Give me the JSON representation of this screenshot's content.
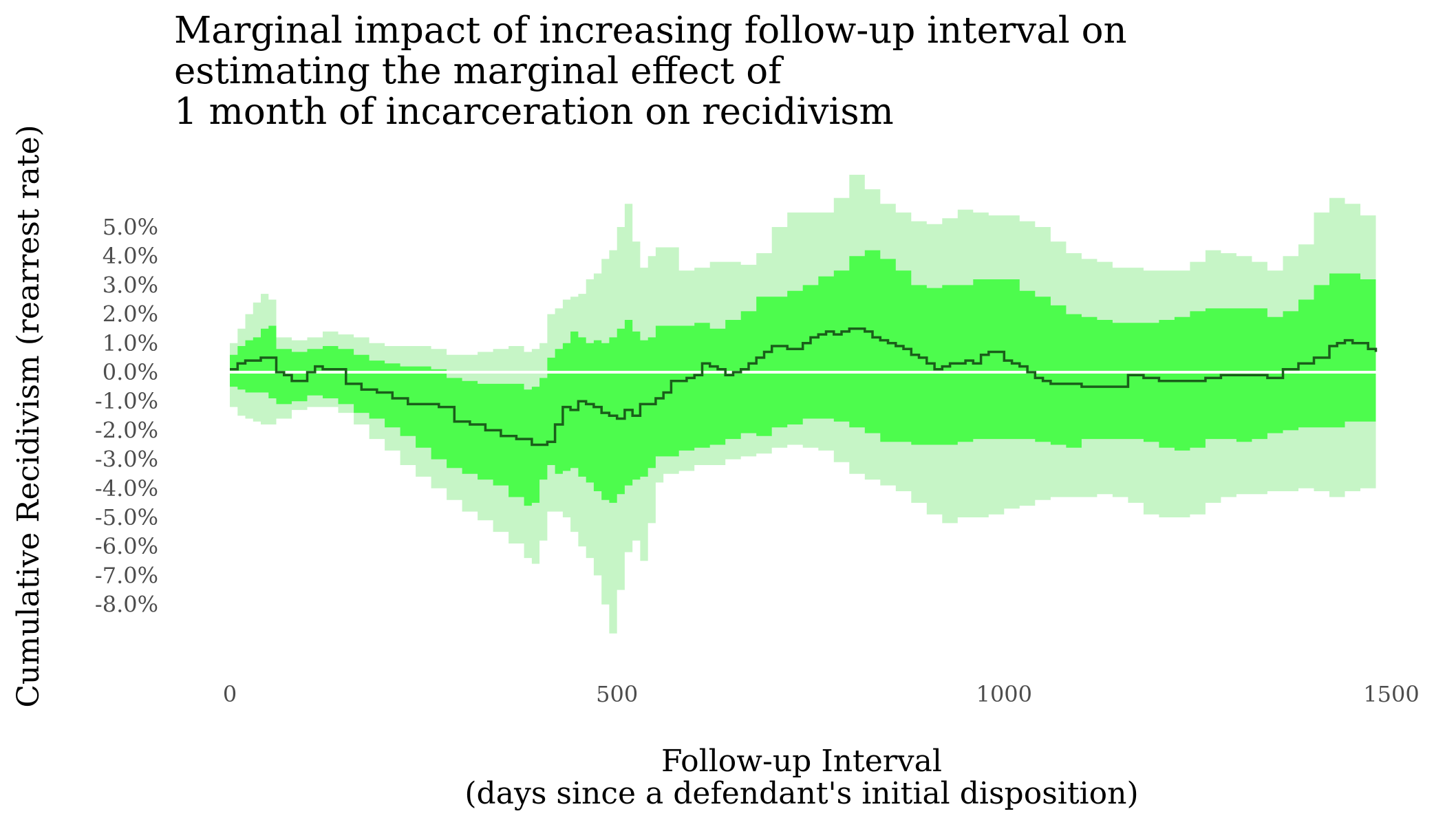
{
  "chart_data": {
    "type": "line",
    "title_lines": [
      "Marginal impact of increasing follow-up interval on",
      "estimating the marginal effect of",
      "1 month of incarceration on recidivism"
    ],
    "xlabel_lines": [
      "Follow-up Interval",
      "(days since a defendant's initial disposition)"
    ],
    "ylabel": "Cumulative Recidivism (rearrest rate)",
    "xlim": [
      0,
      1500
    ],
    "ylim": [
      -8.0,
      5.0
    ],
    "x_ticks": [
      0,
      500,
      1000,
      1500
    ],
    "y_ticks": [
      "5.0%",
      "4.0%",
      "3.0%",
      "2.0%",
      "1.0%",
      "0.0%",
      "-1.0%",
      "-2.0%",
      "-3.0%",
      "-4.0%",
      "-5.0%",
      "-6.0%",
      "-7.0%",
      "-8.0%"
    ],
    "y_tick_values": [
      5.0,
      4.0,
      3.0,
      2.0,
      1.0,
      0.0,
      -1.0,
      -2.0,
      -3.0,
      -4.0,
      -5.0,
      -6.0,
      -7.0,
      -8.0
    ],
    "grid": false,
    "reference_line": 0.0,
    "colors": {
      "estimate_line": "#1a5e1a",
      "inner_band": "#4dfc4d",
      "outer_band": "#c6f5c6",
      "reference_line": "#ffffff"
    },
    "series": [
      {
        "role": "estimate",
        "x": [
          0,
          10,
          20,
          30,
          40,
          50,
          60,
          70,
          80,
          90,
          100,
          110,
          120,
          130,
          150,
          170,
          190,
          210,
          230,
          250,
          270,
          290,
          310,
          330,
          350,
          370,
          390,
          400,
          410,
          420,
          430,
          440,
          450,
          460,
          470,
          480,
          490,
          500,
          510,
          520,
          530,
          540,
          550,
          560,
          570,
          580,
          590,
          600,
          610,
          620,
          630,
          640,
          650,
          660,
          670,
          680,
          690,
          700,
          710,
          720,
          730,
          740,
          750,
          760,
          770,
          780,
          790,
          800,
          810,
          820,
          830,
          840,
          850,
          860,
          870,
          880,
          890,
          900,
          910,
          920,
          930,
          940,
          950,
          960,
          970,
          980,
          990,
          1000,
          1010,
          1020,
          1030,
          1040,
          1050,
          1060,
          1080,
          1100,
          1120,
          1140,
          1160,
          1180,
          1200,
          1220,
          1240,
          1260,
          1280,
          1300,
          1320,
          1340,
          1360,
          1380,
          1400,
          1410,
          1420,
          1430,
          1440,
          1450,
          1460,
          1470,
          1480
        ],
        "y": [
          0.1,
          0.3,
          0.4,
          0.4,
          0.5,
          0.5,
          0.0,
          -0.1,
          -0.3,
          -0.3,
          0.0,
          0.2,
          0.1,
          0.1,
          -0.4,
          -0.6,
          -0.7,
          -0.9,
          -1.1,
          -1.1,
          -1.2,
          -1.7,
          -1.8,
          -2.0,
          -2.2,
          -2.3,
          -2.5,
          -2.5,
          -2.4,
          -1.8,
          -1.2,
          -1.3,
          -1.0,
          -1.1,
          -1.2,
          -1.4,
          -1.5,
          -1.6,
          -1.3,
          -1.5,
          -1.1,
          -1.1,
          -0.9,
          -0.7,
          -0.3,
          -0.3,
          -0.2,
          -0.1,
          0.3,
          0.2,
          0.1,
          -0.1,
          0.0,
          0.1,
          0.3,
          0.5,
          0.7,
          0.9,
          0.9,
          0.8,
          0.8,
          1.0,
          1.2,
          1.3,
          1.4,
          1.3,
          1.4,
          1.5,
          1.5,
          1.4,
          1.2,
          1.1,
          1.0,
          0.9,
          0.8,
          0.6,
          0.5,
          0.3,
          0.1,
          0.2,
          0.3,
          0.3,
          0.4,
          0.3,
          0.6,
          0.7,
          0.7,
          0.4,
          0.3,
          0.2,
          0.0,
          -0.2,
          -0.3,
          -0.4,
          -0.4,
          -0.5,
          -0.5,
          -0.5,
          -0.1,
          -0.2,
          -0.3,
          -0.3,
          -0.3,
          -0.2,
          -0.1,
          -0.1,
          -0.1,
          -0.2,
          0.1,
          0.3,
          0.5,
          0.5,
          0.9,
          1.0,
          1.1,
          1.0,
          1.0,
          0.8,
          0.7
        ]
      },
      {
        "role": "inner-band",
        "x": [
          0,
          10,
          20,
          30,
          40,
          50,
          60,
          80,
          100,
          120,
          140,
          160,
          180,
          200,
          220,
          240,
          260,
          280,
          300,
          320,
          340,
          360,
          380,
          390,
          400,
          410,
          420,
          430,
          440,
          450,
          460,
          470,
          480,
          490,
          500,
          510,
          520,
          530,
          540,
          550,
          560,
          580,
          600,
          620,
          640,
          660,
          680,
          700,
          720,
          740,
          760,
          780,
          800,
          820,
          840,
          860,
          880,
          900,
          920,
          940,
          960,
          980,
          1000,
          1020,
          1040,
          1060,
          1080,
          1100,
          1120,
          1140,
          1160,
          1180,
          1200,
          1220,
          1240,
          1260,
          1280,
          1300,
          1320,
          1340,
          1360,
          1380,
          1400,
          1420,
          1440,
          1460,
          1480
        ],
        "upper": [
          0.6,
          0.9,
          1.1,
          1.2,
          1.5,
          1.6,
          0.8,
          0.7,
          0.8,
          0.9,
          0.8,
          0.6,
          0.4,
          0.3,
          0.2,
          0.2,
          0.1,
          -0.2,
          -0.3,
          -0.4,
          -0.4,
          -0.4,
          -0.6,
          -0.5,
          -0.2,
          0.5,
          0.8,
          1.0,
          1.4,
          1.2,
          1.0,
          1.1,
          1.0,
          1.2,
          1.5,
          1.8,
          1.4,
          1.1,
          1.2,
          1.6,
          1.6,
          1.6,
          1.7,
          1.5,
          1.8,
          2.1,
          2.6,
          2.6,
          2.8,
          3.0,
          3.3,
          3.5,
          4.0,
          4.2,
          3.9,
          3.5,
          3.0,
          2.9,
          3.0,
          3.0,
          3.2,
          3.2,
          3.2,
          2.8,
          2.6,
          2.3,
          2.0,
          1.9,
          1.8,
          1.7,
          1.7,
          1.7,
          1.8,
          1.9,
          2.1,
          2.2,
          2.2,
          2.2,
          2.2,
          1.9,
          2.1,
          2.5,
          3.0,
          3.4,
          3.4,
          3.2,
          3.1
        ],
        "lower": [
          -0.3,
          -0.5,
          -0.6,
          -0.7,
          -0.7,
          -0.7,
          -0.9,
          -1.1,
          -1.0,
          -0.8,
          -0.9,
          -1.1,
          -1.4,
          -1.6,
          -1.9,
          -2.2,
          -2.6,
          -3.0,
          -3.3,
          -3.5,
          -3.7,
          -3.9,
          -4.3,
          -4.6,
          -4.5,
          -3.7,
          -3.2,
          -3.5,
          -3.4,
          -3.3,
          -3.6,
          -3.8,
          -4.1,
          -4.4,
          -4.5,
          -4.2,
          -3.9,
          -3.7,
          -3.6,
          -3.3,
          -2.9,
          -2.9,
          -2.7,
          -2.6,
          -2.5,
          -2.3,
          -2.1,
          -2.2,
          -1.9,
          -1.8,
          -1.6,
          -1.6,
          -1.7,
          -1.9,
          -2.1,
          -2.4,
          -2.4,
          -2.5,
          -2.5,
          -2.5,
          -2.4,
          -2.3,
          -2.3,
          -2.3,
          -2.3,
          -2.4,
          -2.5,
          -2.6,
          -2.3,
          -2.3,
          -2.3,
          -2.3,
          -2.4,
          -2.6,
          -2.7,
          -2.6,
          -2.3,
          -2.3,
          -2.4,
          -2.3,
          -2.1,
          -2.0,
          -1.9,
          -1.9,
          -1.9,
          -1.7,
          -1.7
        ]
      },
      {
        "role": "outer-band",
        "x": [
          0,
          10,
          20,
          30,
          40,
          50,
          60,
          80,
          100,
          120,
          140,
          160,
          180,
          200,
          220,
          240,
          260,
          280,
          300,
          320,
          340,
          360,
          380,
          390,
          400,
          410,
          420,
          430,
          440,
          450,
          460,
          470,
          480,
          490,
          500,
          510,
          520,
          530,
          540,
          550,
          560,
          580,
          600,
          620,
          640,
          660,
          680,
          700,
          720,
          740,
          760,
          780,
          800,
          820,
          840,
          860,
          880,
          900,
          920,
          940,
          960,
          980,
          1000,
          1020,
          1040,
          1060,
          1080,
          1100,
          1120,
          1140,
          1160,
          1180,
          1200,
          1220,
          1240,
          1260,
          1280,
          1300,
          1320,
          1340,
          1360,
          1380,
          1400,
          1420,
          1440,
          1460,
          1480
        ],
        "upper": [
          1.0,
          1.5,
          2.0,
          2.4,
          2.7,
          2.5,
          1.2,
          1.1,
          1.2,
          1.4,
          1.3,
          1.2,
          1.0,
          0.9,
          0.9,
          0.9,
          0.8,
          0.6,
          0.6,
          0.7,
          0.8,
          0.9,
          0.7,
          0.8,
          1.0,
          2.0,
          2.2,
          2.5,
          2.6,
          2.7,
          3.2,
          3.4,
          3.9,
          4.2,
          5.0,
          5.8,
          4.5,
          3.6,
          4.0,
          4.3,
          4.3,
          3.5,
          3.6,
          3.8,
          3.8,
          3.7,
          4.1,
          5.0,
          5.5,
          5.5,
          5.5,
          6.0,
          6.8,
          6.3,
          5.8,
          5.5,
          5.2,
          5.1,
          5.3,
          5.6,
          5.5,
          5.4,
          5.4,
          5.2,
          5.0,
          4.5,
          4.1,
          3.9,
          3.8,
          3.6,
          3.6,
          3.5,
          3.5,
          3.5,
          3.8,
          4.2,
          4.1,
          4.0,
          3.8,
          3.5,
          4.0,
          4.4,
          5.5,
          6.0,
          5.8,
          5.4,
          5.5
        ],
        "lower": [
          -0.8,
          -1.2,
          -1.5,
          -1.6,
          -1.7,
          -1.8,
          -1.8,
          -1.6,
          -1.3,
          -1.2,
          -1.2,
          -1.4,
          -1.8,
          -2.3,
          -2.7,
          -3.2,
          -3.6,
          -4.0,
          -4.4,
          -4.8,
          -5.1,
          -5.5,
          -5.9,
          -6.4,
          -6.6,
          -5.8,
          -4.8,
          -4.8,
          -5.0,
          -5.5,
          -6.0,
          -6.4,
          -7.0,
          -8.0,
          -9.0,
          -7.5,
          -6.2,
          -5.8,
          -6.5,
          -5.2,
          -3.8,
          -3.5,
          -3.4,
          -3.2,
          -3.2,
          -3.0,
          -2.9,
          -2.8,
          -2.6,
          -2.5,
          -2.6,
          -2.7,
          -3.1,
          -3.5,
          -3.7,
          -3.9,
          -4.1,
          -4.5,
          -4.9,
          -5.2,
          -5.0,
          -5.0,
          -4.9,
          -4.7,
          -4.6,
          -4.4,
          -4.3,
          -4.3,
          -4.3,
          -4.2,
          -4.3,
          -4.5,
          -4.9,
          -5.0,
          -5.0,
          -4.9,
          -4.5,
          -4.3,
          -4.2,
          -4.2,
          -4.1,
          -4.1,
          -4.0,
          -4.1,
          -4.3,
          -4.1,
          -4.0
        ]
      }
    ]
  }
}
